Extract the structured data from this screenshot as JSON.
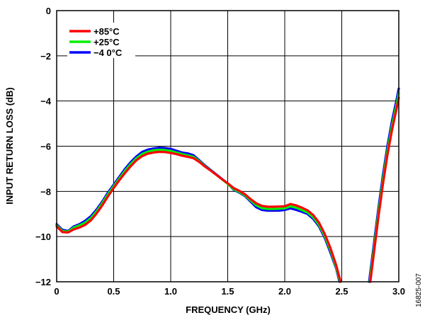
{
  "chart_data": {
    "type": "line",
    "xlabel": "FREQUENCY (GHz)",
    "ylabel": "INPUT RETURN LOSS (dB)",
    "xlim": [
      0,
      3.0
    ],
    "ylim": [
      -12,
      0
    ],
    "x_ticks": [
      "0",
      "0.5",
      "1.0",
      "1.5",
      "2.0",
      "2.5",
      "3.0"
    ],
    "y_ticks": [
      "0",
      "−2",
      "−4",
      "−6",
      "−8",
      "−10",
      "−12"
    ],
    "grid": true,
    "legend_position": "top-left",
    "figure_id": "16825-007",
    "series": [
      {
        "name": "−4 0°C",
        "color": "#0000ff",
        "segments": [
          [
            [
              0.0,
              -9.45
            ],
            [
              0.05,
              -9.7
            ],
            [
              0.1,
              -9.75
            ],
            [
              0.15,
              -9.55
            ],
            [
              0.2,
              -9.45
            ],
            [
              0.25,
              -9.3
            ],
            [
              0.3,
              -9.1
            ],
            [
              0.35,
              -8.8
            ],
            [
              0.4,
              -8.45
            ],
            [
              0.45,
              -8.05
            ],
            [
              0.5,
              -7.7
            ],
            [
              0.55,
              -7.35
            ],
            [
              0.6,
              -7.0
            ],
            [
              0.65,
              -6.7
            ],
            [
              0.7,
              -6.45
            ],
            [
              0.75,
              -6.25
            ],
            [
              0.8,
              -6.15
            ],
            [
              0.85,
              -6.1
            ],
            [
              0.9,
              -6.07
            ],
            [
              0.95,
              -6.08
            ],
            [
              1.0,
              -6.12
            ],
            [
              1.05,
              -6.2
            ],
            [
              1.1,
              -6.28
            ],
            [
              1.15,
              -6.32
            ],
            [
              1.2,
              -6.4
            ],
            [
              1.25,
              -6.62
            ],
            [
              1.3,
              -6.85
            ],
            [
              1.35,
              -7.05
            ],
            [
              1.4,
              -7.25
            ],
            [
              1.45,
              -7.45
            ],
            [
              1.5,
              -7.65
            ],
            [
              1.55,
              -7.92
            ],
            [
              1.6,
              -8.05
            ],
            [
              1.65,
              -8.2
            ],
            [
              1.7,
              -8.45
            ],
            [
              1.75,
              -8.7
            ],
            [
              1.8,
              -8.82
            ],
            [
              1.85,
              -8.85
            ],
            [
              1.9,
              -8.85
            ],
            [
              1.95,
              -8.85
            ],
            [
              2.0,
              -8.82
            ],
            [
              2.05,
              -8.75
            ],
            [
              2.1,
              -8.82
            ],
            [
              2.15,
              -8.9
            ],
            [
              2.2,
              -9.0
            ],
            [
              2.25,
              -9.22
            ],
            [
              2.3,
              -9.55
            ],
            [
              2.35,
              -10.05
            ],
            [
              2.4,
              -10.7
            ],
            [
              2.45,
              -11.4
            ],
            [
              2.48,
              -12.0
            ]
          ],
          [
            [
              2.74,
              -12.0
            ],
            [
              2.78,
              -10.4
            ],
            [
              2.82,
              -8.8
            ],
            [
              2.86,
              -7.3
            ],
            [
              2.9,
              -6.0
            ],
            [
              2.94,
              -4.9
            ],
            [
              2.98,
              -3.95
            ],
            [
              3.0,
              -3.45
            ]
          ]
        ]
      },
      {
        "name": "+25°C",
        "color": "#00ee00",
        "segments": [
          [
            [
              0.0,
              -9.5
            ],
            [
              0.05,
              -9.75
            ],
            [
              0.1,
              -9.78
            ],
            [
              0.15,
              -9.6
            ],
            [
              0.2,
              -9.5
            ],
            [
              0.25,
              -9.38
            ],
            [
              0.3,
              -9.18
            ],
            [
              0.35,
              -8.88
            ],
            [
              0.4,
              -8.52
            ],
            [
              0.45,
              -8.12
            ],
            [
              0.5,
              -7.77
            ],
            [
              0.55,
              -7.42
            ],
            [
              0.6,
              -7.08
            ],
            [
              0.65,
              -6.78
            ],
            [
              0.7,
              -6.53
            ],
            [
              0.75,
              -6.34
            ],
            [
              0.8,
              -6.24
            ],
            [
              0.85,
              -6.18
            ],
            [
              0.9,
              -6.16
            ],
            [
              0.95,
              -6.17
            ],
            [
              1.0,
              -6.21
            ],
            [
              1.05,
              -6.28
            ],
            [
              1.1,
              -6.35
            ],
            [
              1.15,
              -6.4
            ],
            [
              1.2,
              -6.47
            ],
            [
              1.25,
              -6.66
            ],
            [
              1.3,
              -6.88
            ],
            [
              1.35,
              -7.07
            ],
            [
              1.4,
              -7.27
            ],
            [
              1.45,
              -7.47
            ],
            [
              1.5,
              -7.67
            ],
            [
              1.55,
              -7.9
            ],
            [
              1.6,
              -8.02
            ],
            [
              1.65,
              -8.17
            ],
            [
              1.7,
              -8.4
            ],
            [
              1.75,
              -8.62
            ],
            [
              1.8,
              -8.74
            ],
            [
              1.85,
              -8.78
            ],
            [
              1.9,
              -8.78
            ],
            [
              1.95,
              -8.77
            ],
            [
              2.0,
              -8.75
            ],
            [
              2.05,
              -8.66
            ],
            [
              2.1,
              -8.72
            ],
            [
              2.15,
              -8.83
            ],
            [
              2.2,
              -8.94
            ],
            [
              2.25,
              -9.15
            ],
            [
              2.3,
              -9.48
            ],
            [
              2.35,
              -9.98
            ],
            [
              2.4,
              -10.6
            ],
            [
              2.45,
              -11.35
            ],
            [
              2.485,
              -12.0
            ]
          ],
          [
            [
              2.745,
              -12.0
            ],
            [
              2.78,
              -10.6
            ],
            [
              2.82,
              -9.0
            ],
            [
              2.86,
              -7.5
            ],
            [
              2.9,
              -6.2
            ],
            [
              2.94,
              -5.1
            ],
            [
              2.98,
              -4.15
            ],
            [
              3.0,
              -3.65
            ]
          ]
        ]
      },
      {
        "name": "+85°C",
        "color": "#ff0000",
        "segments": [
          [
            [
              0.0,
              -9.55
            ],
            [
              0.05,
              -9.8
            ],
            [
              0.1,
              -9.82
            ],
            [
              0.15,
              -9.68
            ],
            [
              0.2,
              -9.6
            ],
            [
              0.25,
              -9.48
            ],
            [
              0.3,
              -9.28
            ],
            [
              0.35,
              -8.98
            ],
            [
              0.4,
              -8.62
            ],
            [
              0.45,
              -8.22
            ],
            [
              0.5,
              -7.85
            ],
            [
              0.55,
              -7.5
            ],
            [
              0.6,
              -7.18
            ],
            [
              0.65,
              -6.88
            ],
            [
              0.7,
              -6.62
            ],
            [
              0.75,
              -6.44
            ],
            [
              0.8,
              -6.33
            ],
            [
              0.85,
              -6.28
            ],
            [
              0.9,
              -6.25
            ],
            [
              0.95,
              -6.26
            ],
            [
              1.0,
              -6.3
            ],
            [
              1.05,
              -6.35
            ],
            [
              1.1,
              -6.42
            ],
            [
              1.15,
              -6.47
            ],
            [
              1.2,
              -6.53
            ],
            [
              1.25,
              -6.7
            ],
            [
              1.3,
              -6.9
            ],
            [
              1.35,
              -7.08
            ],
            [
              1.4,
              -7.27
            ],
            [
              1.45,
              -7.46
            ],
            [
              1.5,
              -7.64
            ],
            [
              1.55,
              -7.85
            ],
            [
              1.6,
              -7.97
            ],
            [
              1.65,
              -8.12
            ],
            [
              1.7,
              -8.34
            ],
            [
              1.75,
              -8.53
            ],
            [
              1.8,
              -8.64
            ],
            [
              1.85,
              -8.68
            ],
            [
              1.9,
              -8.68
            ],
            [
              1.95,
              -8.67
            ],
            [
              2.0,
              -8.66
            ],
            [
              2.05,
              -8.56
            ],
            [
              2.1,
              -8.62
            ],
            [
              2.15,
              -8.72
            ],
            [
              2.2,
              -8.84
            ],
            [
              2.25,
              -9.05
            ],
            [
              2.3,
              -9.38
            ],
            [
              2.35,
              -9.88
            ],
            [
              2.4,
              -10.5
            ],
            [
              2.45,
              -11.25
            ],
            [
              2.49,
              -12.0
            ]
          ],
          [
            [
              2.75,
              -12.0
            ],
            [
              2.78,
              -10.8
            ],
            [
              2.82,
              -9.2
            ],
            [
              2.86,
              -7.7
            ],
            [
              2.9,
              -6.4
            ],
            [
              2.94,
              -5.3
            ],
            [
              2.98,
              -4.35
            ],
            [
              3.0,
              -3.85
            ]
          ]
        ]
      }
    ],
    "legend_order": [
      "+85°C",
      "+25°C",
      "−4 0°C"
    ]
  }
}
